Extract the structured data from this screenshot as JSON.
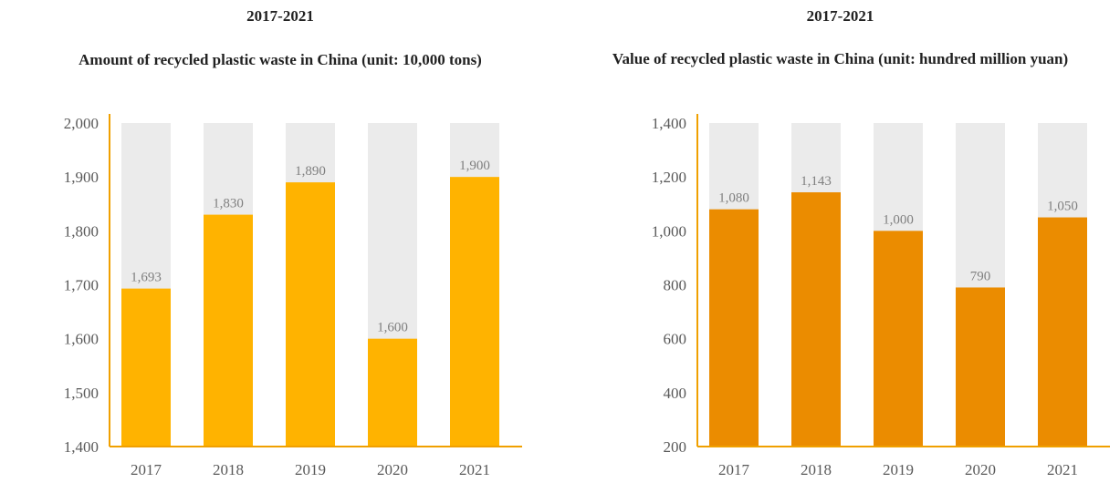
{
  "chart_data": [
    {
      "type": "bar",
      "period": "2017-2021",
      "title": "Amount of recycled plastic waste in China (unit: 10,000 tons)",
      "categories": [
        "2017",
        "2018",
        "2019",
        "2020",
        "2021"
      ],
      "values": [
        1693,
        1830,
        1890,
        1600,
        1900
      ],
      "value_labels": [
        "1,693",
        "1,830",
        "1,890",
        "1,600",
        "1,900"
      ],
      "ylim": [
        1400,
        2000
      ],
      "yticks": [
        1400,
        1500,
        1600,
        1700,
        1800,
        1900,
        2000
      ],
      "ytick_labels": [
        "1,400",
        "1,500",
        "1,600",
        "1,700",
        "1,800",
        "1,900",
        "2,000"
      ],
      "bar_color": "#FFB300",
      "background_bar_color": "#EBEBEB",
      "axis_color": "#F0A000",
      "grid": false,
      "legend": "none"
    },
    {
      "type": "bar",
      "period": "2017-2021",
      "title": "Value of recycled plastic waste in China (unit: hundred million yuan)",
      "categories": [
        "2017",
        "2018",
        "2019",
        "2020",
        "2021"
      ],
      "values": [
        1080,
        1143,
        1000,
        790,
        1050
      ],
      "value_labels": [
        "1,080",
        "1,143",
        "1,000",
        "790",
        "1,050"
      ],
      "ylim": [
        200,
        1400
      ],
      "yticks": [
        200,
        400,
        600,
        800,
        1000,
        1200,
        1400
      ],
      "ytick_labels": [
        "200",
        "400",
        "600",
        "800",
        "1,000",
        "1,200",
        "1,400"
      ],
      "bar_color": "#EB8C00",
      "background_bar_color": "#EBEBEB",
      "axis_color": "#F0A000",
      "grid": false,
      "legend": "none"
    }
  ]
}
